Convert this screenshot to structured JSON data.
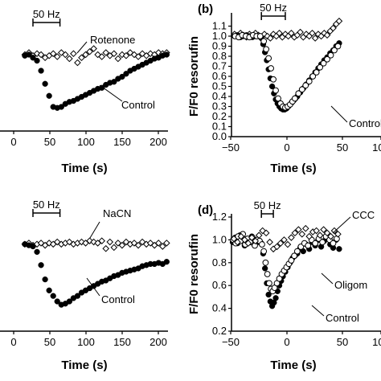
{
  "chart_data": [
    {
      "panel": "a",
      "type": "scatter",
      "xlabel": "Time (s)",
      "ylabel": "",
      "xlim": [
        -50,
        200
      ],
      "ylim": [
        0.2,
        1.2
      ],
      "xticks": [
        "0",
        "50",
        "100",
        "150",
        "200"
      ],
      "yticks": [],
      "bracket": {
        "label": "50 Hz",
        "start": 0,
        "end": 40
      },
      "series": [
        {
          "name": "Rotenone",
          "marker": "open-diamond",
          "x": [
            -12,
            -6,
            0,
            6,
            12,
            18,
            24,
            30,
            36,
            42,
            48,
            54,
            60,
            66,
            72,
            78,
            84,
            90,
            96,
            102,
            108,
            114,
            120,
            126,
            132,
            138,
            144,
            150,
            156,
            162,
            168,
            174,
            180,
            186,
            192,
            198
          ],
          "y": [
            0.96,
            0.98,
            0.95,
            0.97,
            0.96,
            0.93,
            0.95,
            0.97,
            0.94,
            0.98,
            0.96,
            0.92,
            0.97,
            0.88,
            0.93,
            0.96,
            0.99,
            1.02,
            0.96,
            0.94,
            0.98,
            0.95,
            0.97,
            0.92,
            0.96,
            0.95,
            0.98,
            0.96,
            0.94,
            0.97,
            0.95,
            0.97,
            0.96,
            0.98,
            0.97,
            0.98
          ]
        },
        {
          "name": "Control",
          "marker": "filled-circle",
          "x": [
            -12,
            -6,
            0,
            6,
            12,
            18,
            24,
            30,
            36,
            42,
            48,
            54,
            60,
            66,
            72,
            78,
            84,
            90,
            96,
            102,
            108,
            114,
            120,
            126,
            132,
            138,
            144,
            150,
            156,
            162,
            168,
            174,
            180,
            186,
            192,
            198
          ],
          "y": [
            0.95,
            0.96,
            0.93,
            0.9,
            0.8,
            0.67,
            0.55,
            0.44,
            0.43,
            0.44,
            0.47,
            0.49,
            0.5,
            0.52,
            0.54,
            0.56,
            0.58,
            0.6,
            0.62,
            0.63,
            0.66,
            0.68,
            0.69,
            0.72,
            0.74,
            0.77,
            0.8,
            0.82,
            0.84,
            0.86,
            0.88,
            0.9,
            0.92,
            0.93,
            0.95,
            0.96
          ]
        }
      ],
      "annotations": [
        "Rotenone",
        "Control"
      ]
    },
    {
      "panel": "b",
      "letter": "(b)",
      "type": "scatter",
      "xlabel": "Time (s)",
      "ylabel": "F/F0 resorufin",
      "xlim": [
        -50,
        200
      ],
      "ylim": [
        0.0,
        1.2
      ],
      "xticks": [
        "−50",
        "0",
        "50",
        "100"
      ],
      "yticks": [
        "0.0",
        "0.1",
        "0.2",
        "0.3",
        "0.4",
        "0.5",
        "0.6",
        "0.7",
        "0.8",
        "0.9",
        "1.0",
        "1.1"
      ],
      "bracket": {
        "label": "50 Hz",
        "start": 0,
        "end": 40
      },
      "series": [
        {
          "name": "",
          "marker": "open-diamond",
          "x": [
            -45,
            -40,
            -35,
            -30,
            -25,
            -20,
            -15,
            -10,
            -5,
            0,
            5,
            10,
            15,
            20,
            25,
            30,
            35,
            40,
            45,
            50,
            55,
            60,
            65,
            70,
            75,
            80,
            85,
            90,
            95,
            100,
            105,
            110,
            115,
            120,
            125,
            130
          ],
          "y": [
            1.02,
            1.0,
            1.03,
            1.01,
            0.99,
            1.02,
            1.0,
            1.03,
            1.01,
            0.99,
            1.02,
            1.0,
            0.98,
            1.02,
            1.0,
            1.03,
            0.99,
            1.02,
            1.0,
            1.03,
            0.99,
            1.01,
            1.04,
            0.99,
            1.02,
            1.0,
            1.03,
            0.98,
            1.02,
            1.0,
            1.03,
            1.01,
            1.05,
            1.08,
            1.12,
            1.15
          ]
        },
        {
          "name": "Control",
          "marker": "filled-circle",
          "x": [
            -45,
            -40,
            -35,
            -30,
            -25,
            -20,
            -15,
            -10,
            -5,
            0,
            3,
            6,
            9,
            12,
            15,
            18,
            21,
            24,
            27,
            30,
            33,
            36,
            39,
            42,
            45,
            48,
            51,
            54,
            57,
            60,
            65,
            70,
            75,
            80,
            85,
            90,
            95,
            100,
            105,
            110,
            115,
            120,
            125,
            130
          ],
          "y": [
            1.0,
            1.01,
            0.99,
            1.0,
            1.01,
            1.0,
            0.99,
            1.0,
            1.0,
            0.98,
            0.92,
            0.84,
            0.76,
            0.67,
            0.58,
            0.5,
            0.43,
            0.37,
            0.33,
            0.3,
            0.28,
            0.27,
            0.27,
            0.28,
            0.3,
            0.32,
            0.34,
            0.36,
            0.38,
            0.4,
            0.44,
            0.48,
            0.52,
            0.56,
            0.6,
            0.64,
            0.68,
            0.72,
            0.76,
            0.79,
            0.83,
            0.86,
            0.9,
            0.93
          ]
        },
        {
          "name": "",
          "marker": "open-circle",
          "x": [
            -44,
            -38,
            -32,
            -26,
            -20,
            -14,
            -8,
            -2,
            4,
            8,
            12,
            16,
            20,
            24,
            28,
            32,
            36,
            40,
            44,
            48,
            52,
            56,
            62,
            68,
            74,
            80,
            86,
            92,
            98,
            104,
            110,
            116,
            122,
            128
          ],
          "y": [
            1.0,
            0.99,
            1.01,
            1.0,
            0.99,
            1.01,
            1.0,
            1.0,
            0.95,
            0.87,
            0.78,
            0.68,
            0.57,
            0.46,
            0.38,
            0.33,
            0.3,
            0.29,
            0.3,
            0.32,
            0.35,
            0.38,
            0.43,
            0.47,
            0.51,
            0.55,
            0.6,
            0.64,
            0.69,
            0.73,
            0.77,
            0.81,
            0.86,
            0.9
          ]
        }
      ],
      "annotations": [
        "Control"
      ]
    },
    {
      "panel": "c",
      "type": "scatter",
      "xlabel": "Time (s)",
      "ylabel": "",
      "xlim": [
        -50,
        200
      ],
      "ylim": [
        0.2,
        1.2
      ],
      "xticks": [
        "0",
        "50",
        "100",
        "150",
        "200"
      ],
      "yticks": [],
      "bracket": {
        "label": "50 Hz",
        "start": 0,
        "end": 40
      },
      "series": [
        {
          "name": "NaCN",
          "marker": "open-diamond",
          "x": [
            -12,
            -6,
            0,
            6,
            12,
            18,
            24,
            30,
            36,
            42,
            48,
            54,
            60,
            66,
            72,
            78,
            84,
            90,
            96,
            102,
            108,
            114,
            120,
            126,
            132,
            138,
            144,
            150,
            156,
            162,
            168,
            174,
            180,
            186,
            192,
            198
          ],
          "y": [
            0.99,
            1.0,
            0.98,
            0.99,
            1.0,
            0.98,
            1.0,
            0.99,
            1.01,
            0.99,
            1.0,
            1.01,
            0.99,
            1.0,
            1.01,
            1.0,
            1.02,
            1.01,
            1.0,
            1.02,
            0.95,
            1.01,
            0.96,
            1.0,
            0.98,
            1.01,
            0.99,
            1.0,
            0.98,
            1.01,
            0.99,
            1.0,
            0.98,
            1.0,
            0.97,
            1.0
          ]
        },
        {
          "name": "Control",
          "marker": "filled-circle",
          "x": [
            -12,
            -6,
            0,
            6,
            12,
            18,
            24,
            30,
            36,
            42,
            48,
            54,
            60,
            66,
            72,
            78,
            84,
            90,
            96,
            102,
            108,
            114,
            120,
            126,
            132,
            138,
            144,
            150,
            156,
            162,
            168,
            174,
            180,
            186,
            192,
            198
          ],
          "y": [
            0.99,
            0.98,
            0.97,
            0.92,
            0.8,
            0.67,
            0.57,
            0.52,
            0.47,
            0.44,
            0.45,
            0.47,
            0.5,
            0.52,
            0.55,
            0.57,
            0.59,
            0.61,
            0.63,
            0.65,
            0.66,
            0.68,
            0.7,
            0.71,
            0.73,
            0.74,
            0.75,
            0.76,
            0.77,
            0.79,
            0.8,
            0.81,
            0.81,
            0.82,
            0.81,
            0.83
          ]
        }
      ],
      "annotations": [
        "NaCN",
        "Control"
      ]
    },
    {
      "panel": "d",
      "letter": "(d)",
      "type": "scatter",
      "xlabel": "Time (s)",
      "ylabel": "F/F0 resorufin",
      "xlim": [
        -50,
        200
      ],
      "ylim": [
        0.2,
        1.2
      ],
      "xticks": [
        "−50",
        "0",
        "50",
        "100"
      ],
      "yticks": [
        "0.2",
        "0.4",
        "0.6",
        "0.8",
        "1.0",
        "1.2"
      ],
      "bracket": {
        "label": "50 Hz",
        "start": 0,
        "end": 20
      },
      "series": [
        {
          "name": "",
          "marker": "filled-circle",
          "x": [
            -48,
            -44,
            -40,
            -36,
            -32,
            -28,
            -24,
            -20,
            -16,
            -12,
            -8,
            -4,
            0,
            3,
            6,
            9,
            12,
            15,
            18,
            21,
            24,
            27,
            30,
            33,
            36,
            40,
            44,
            48,
            52,
            56,
            60,
            65,
            70,
            75,
            80,
            85,
            90,
            95,
            100,
            105,
            110,
            115,
            120,
            125,
            130
          ],
          "y": [
            0.98,
            1.02,
            0.97,
            1.04,
            0.99,
            0.95,
            1.01,
            0.98,
            1.03,
            0.96,
            1.0,
            0.98,
            0.97,
            0.88,
            0.75,
            0.62,
            0.52,
            0.46,
            0.42,
            0.45,
            0.49,
            0.55,
            0.6,
            0.64,
            0.68,
            0.72,
            0.76,
            0.8,
            0.84,
            0.86,
            0.88,
            0.93,
            0.9,
            0.96,
            0.92,
            0.98,
            0.95,
            1.0,
            0.94,
            0.99,
            1.02,
            0.96,
            0.93,
            1.0,
            0.92
          ]
        },
        {
          "name": "",
          "marker": "open-circle",
          "x": [
            -47,
            -43,
            -39,
            -35,
            -31,
            -27,
            -23,
            -19,
            -15,
            -11,
            -7,
            -3,
            1,
            4,
            7,
            10,
            13,
            16,
            19,
            22,
            26,
            30,
            34,
            38,
            42,
            46,
            50,
            55,
            60,
            66,
            72,
            78,
            84,
            90,
            96,
            102,
            108,
            114,
            120,
            126
          ],
          "y": [
            1.0,
            0.97,
            1.03,
            0.99,
            1.05,
            0.96,
            1.01,
            0.98,
            1.02,
            0.95,
            1.0,
            0.99,
            0.96,
            0.9,
            0.8,
            0.7,
            0.62,
            0.57,
            0.55,
            0.58,
            0.62,
            0.66,
            0.7,
            0.73,
            0.76,
            0.79,
            0.82,
            0.86,
            0.9,
            0.94,
            0.97,
            0.95,
            1.0,
            0.97,
            1.01,
            0.98,
            1.03,
            1.0,
            0.97,
            1.01
          ]
        },
        {
          "name": "CCCP",
          "marker": "open-diamond",
          "x": [
            -46,
            -40,
            -34,
            -28,
            -22,
            -16,
            -10,
            -4,
            2,
            8,
            14,
            20,
            26,
            32,
            38,
            44,
            50,
            56,
            62,
            68,
            74,
            80,
            86,
            92,
            98,
            104,
            110,
            116,
            122,
            128
          ],
          "y": [
            1.01,
            0.98,
            1.03,
            1.0,
            0.97,
            1.02,
            0.99,
            1.04,
            1.08,
            1.06,
            0.98,
            0.92,
            0.94,
            0.97,
            1.0,
            0.96,
            1.02,
            1.06,
            1.09,
            1.05,
            1.1,
            1.03,
            1.07,
            1.08,
            1.04,
            1.09,
            1.06,
            1.03,
            1.08,
            1.05
          ]
        }
      ],
      "annotations": [
        "CCC",
        "Oligom",
        "Control"
      ]
    }
  ]
}
